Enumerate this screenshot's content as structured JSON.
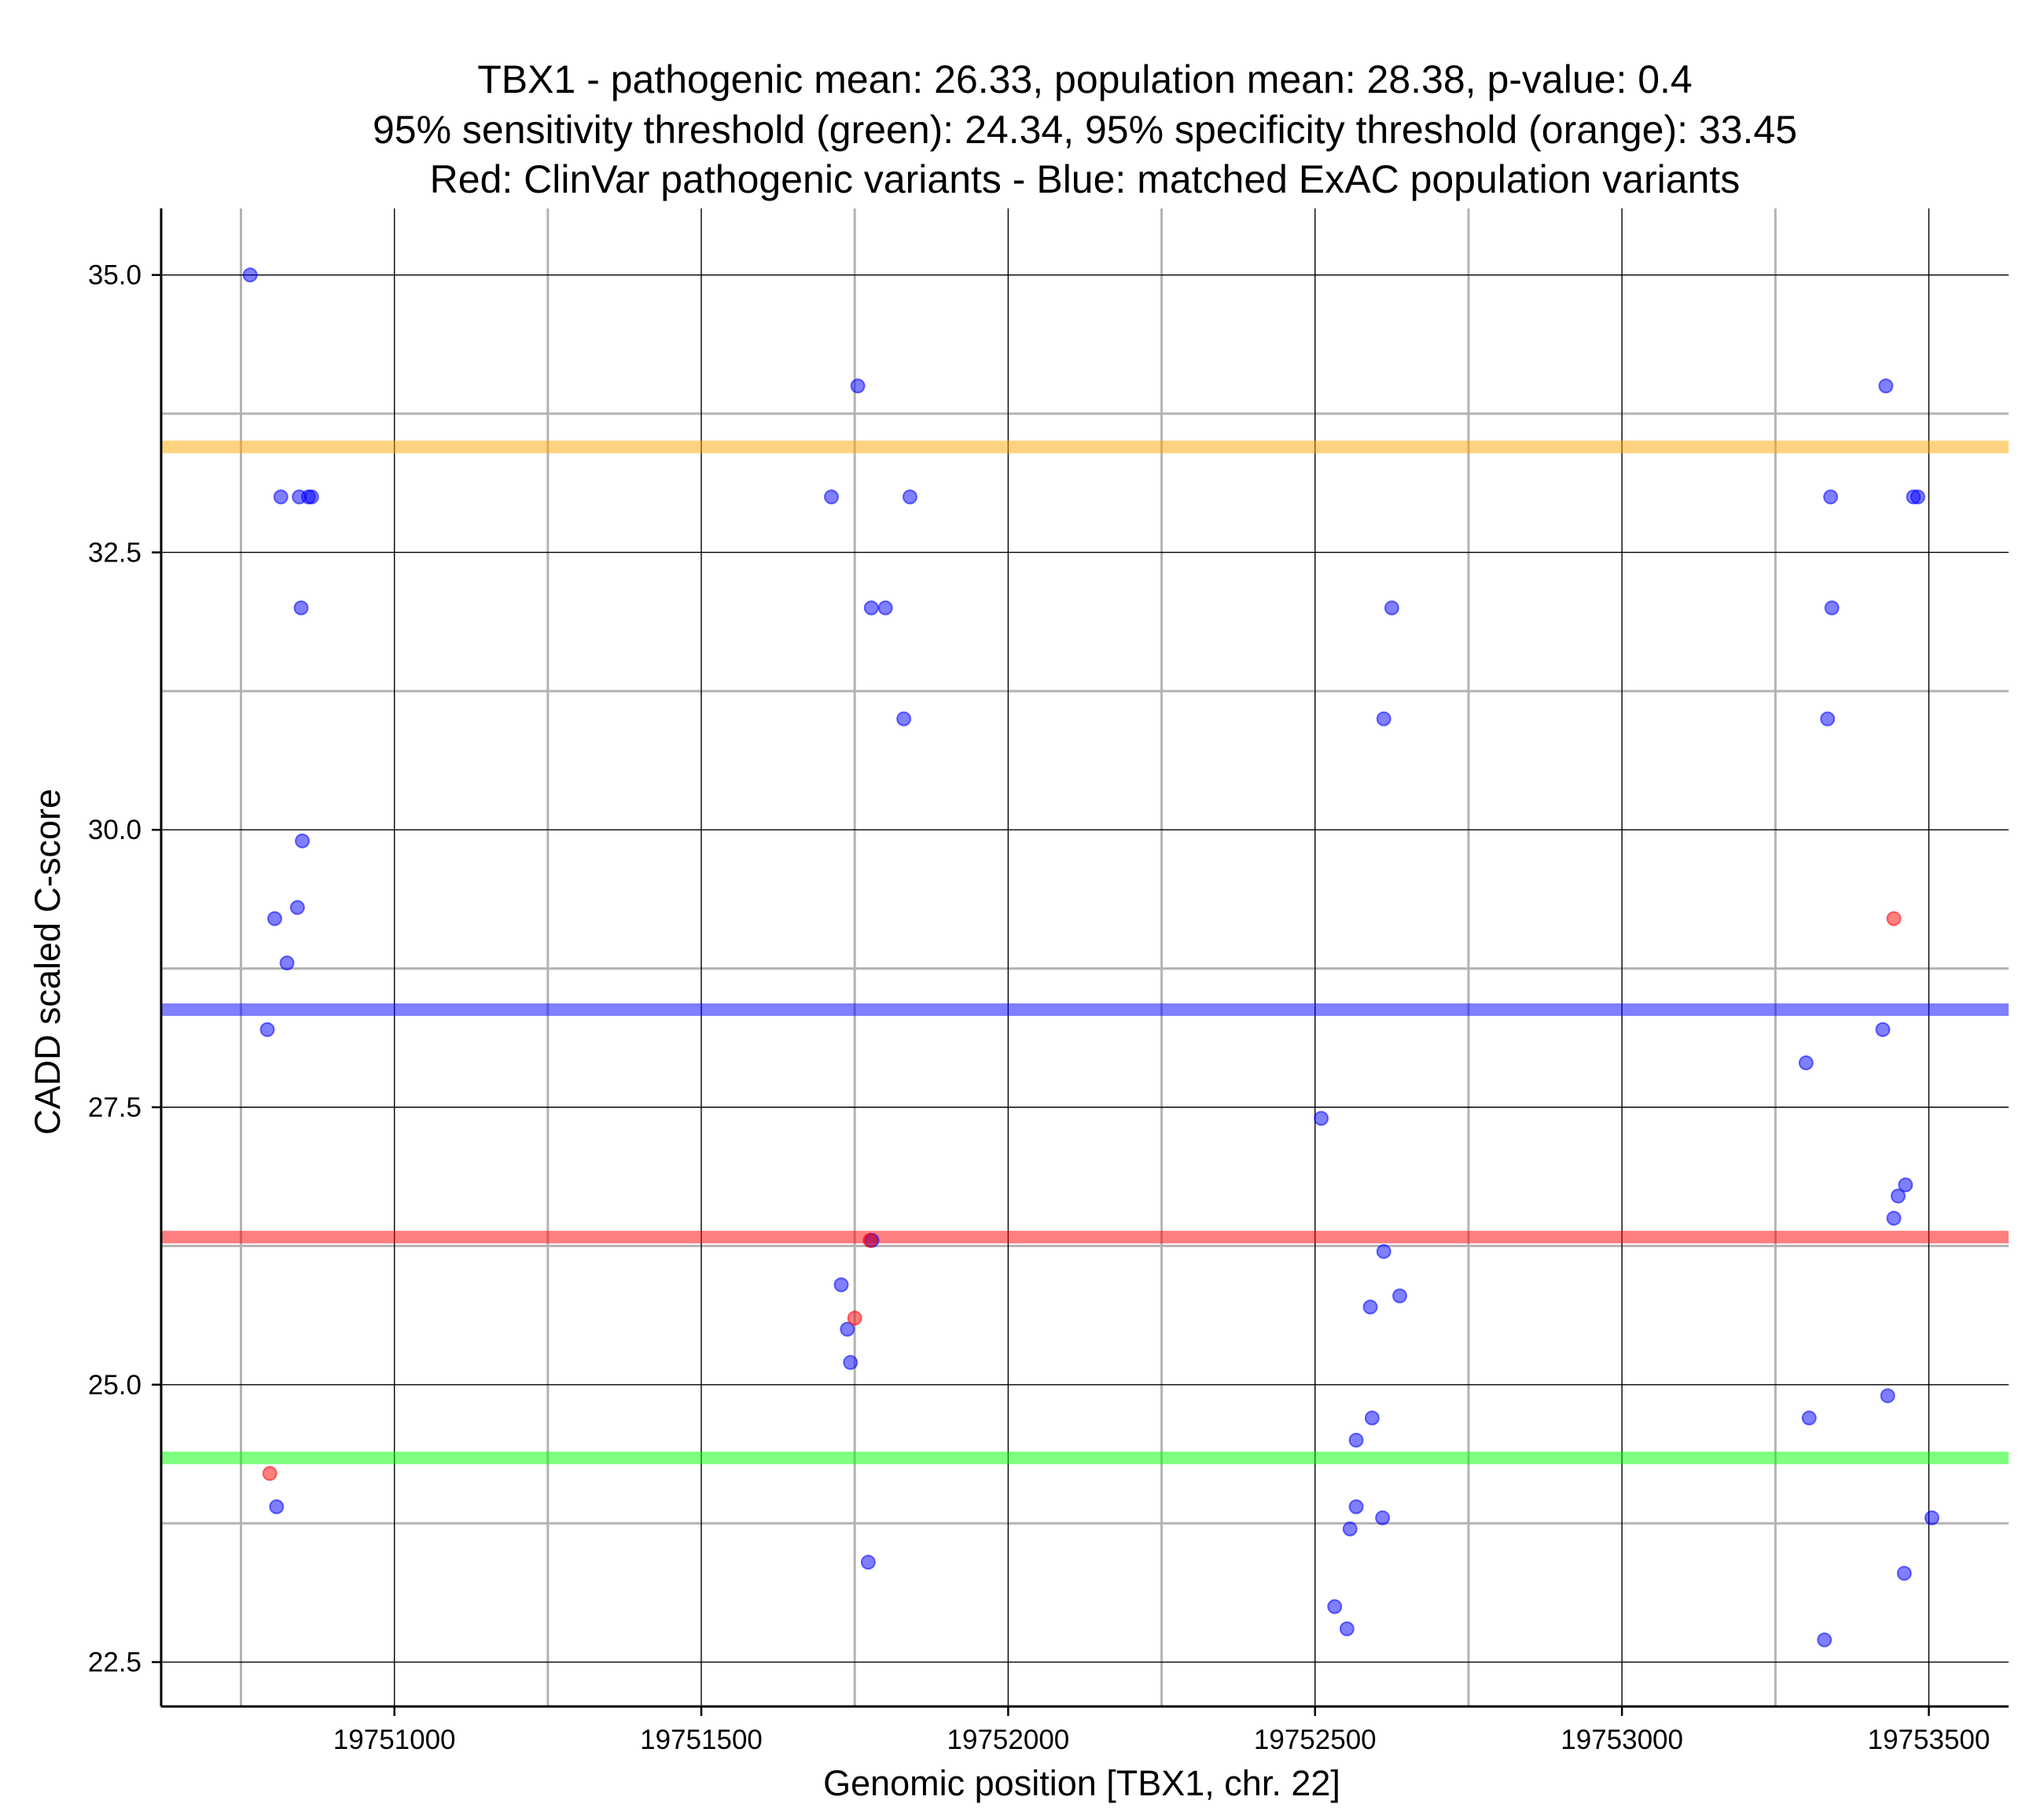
{
  "chart_data": {
    "type": "scatter",
    "title_lines": [
      "TBX1 - pathogenic mean: 26.33, population mean: 28.38, p-value: 0.4",
      "95% sensitivity threshold (green): 24.34, 95% specificity threshold (orange): 33.45",
      "Red: ClinVar pathogenic variants - Blue: matched ExAC population variants"
    ],
    "xlabel": "Genomic position [TBX1, chr. 22]",
    "ylabel": "CADD scaled C-score",
    "xlim": [
      19750620,
      19753630
    ],
    "ylim": [
      22.1,
      35.6
    ],
    "x_ticks": [
      19751000,
      19751500,
      19752000,
      19752500,
      19753000,
      19753500
    ],
    "x_tick_labels": [
      "19751000",
      "19751500",
      "19752000",
      "19752500",
      "19753000",
      "19753500"
    ],
    "x_minor_ticks": [
      19750750,
      19751250,
      19751750,
      19752250,
      19752750,
      19753250
    ],
    "y_ticks": [
      22.5,
      25.0,
      27.5,
      30.0,
      32.5,
      35.0
    ],
    "y_tick_labels": [
      "22.5",
      "25.0",
      "27.5",
      "30.0",
      "32.5",
      "35.0"
    ],
    "y_minor_ticks": [
      23.75,
      26.25,
      28.75,
      31.25,
      33.75
    ],
    "hlines": [
      {
        "name": "specificity-threshold",
        "value": 33.45,
        "color": "#ffa500"
      },
      {
        "name": "population-mean",
        "value": 28.38,
        "color": "#0000ff"
      },
      {
        "name": "pathogenic-mean",
        "value": 26.33,
        "color": "#ff0000"
      },
      {
        "name": "sensitivity-threshold",
        "value": 24.34,
        "color": "#00ff00"
      }
    ],
    "series": [
      {
        "name": "ExAC population variants",
        "color": "#0000ff",
        "points": [
          [
            19750765,
            35.0
          ],
          [
            19750815,
            33.0
          ],
          [
            19750845,
            33.0
          ],
          [
            19750860,
            33.0
          ],
          [
            19750865,
            33.0
          ],
          [
            19750848,
            32.0
          ],
          [
            19750850,
            29.9
          ],
          [
            19750842,
            29.3
          ],
          [
            19750805,
            29.2
          ],
          [
            19750825,
            28.8
          ],
          [
            19750793,
            28.2
          ],
          [
            19750808,
            23.9
          ],
          [
            19751755,
            34.0
          ],
          [
            19751712,
            33.0
          ],
          [
            19751840,
            33.0
          ],
          [
            19751777,
            32.0
          ],
          [
            19751800,
            32.0
          ],
          [
            19751830,
            31.0
          ],
          [
            19751778,
            26.3
          ],
          [
            19751728,
            25.9
          ],
          [
            19751738,
            25.5
          ],
          [
            19751743,
            25.2
          ],
          [
            19751772,
            23.4
          ],
          [
            19752625,
            32.0
          ],
          [
            19752612,
            31.0
          ],
          [
            19752510,
            27.4
          ],
          [
            19752612,
            26.2
          ],
          [
            19752638,
            25.8
          ],
          [
            19752590,
            25.7
          ],
          [
            19752593,
            24.7
          ],
          [
            19752567,
            24.5
          ],
          [
            19752567,
            23.9
          ],
          [
            19752610,
            23.8
          ],
          [
            19752557,
            23.7
          ],
          [
            19752532,
            23.0
          ],
          [
            19752552,
            22.8
          ],
          [
            19753430,
            34.0
          ],
          [
            19753340,
            33.0
          ],
          [
            19753475,
            33.0
          ],
          [
            19753482,
            33.0
          ],
          [
            19753342,
            32.0
          ],
          [
            19753335,
            31.0
          ],
          [
            19753425,
            28.2
          ],
          [
            19753300,
            27.9
          ],
          [
            19753462,
            26.8
          ],
          [
            19753450,
            26.7
          ],
          [
            19753443,
            26.5
          ],
          [
            19753433,
            24.9
          ],
          [
            19753305,
            24.7
          ],
          [
            19753505,
            23.8
          ],
          [
            19753460,
            23.3
          ],
          [
            19753330,
            22.7
          ]
        ]
      },
      {
        "name": "ClinVar pathogenic variants",
        "color": "#ff0000",
        "points": [
          [
            19750797,
            24.2
          ],
          [
            19751750,
            25.6
          ],
          [
            19751775,
            26.3
          ],
          [
            19753443,
            29.2
          ]
        ]
      }
    ]
  }
}
